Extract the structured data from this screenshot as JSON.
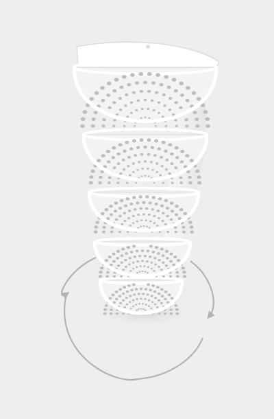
{
  "scene": {
    "subject": "stacked-perforated-half-round-trays",
    "tray_count": 5,
    "rotation_indicator": "circular-arrows",
    "colors": {
      "background": "#eeeeee",
      "tray": "#ffffff",
      "tray_inner": "#f3f3f3",
      "hole": "#bdbdbd",
      "shadow": "#d6d6d6",
      "arrow": "#b3b3b3"
    }
  }
}
